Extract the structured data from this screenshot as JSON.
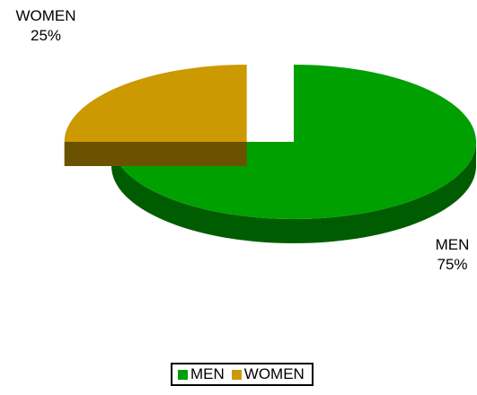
{
  "chart_data": {
    "type": "pie",
    "title": "",
    "categories": [
      "MEN",
      "WOMEN"
    ],
    "values": [
      75,
      25
    ],
    "value_labels": [
      "75%",
      "25%"
    ],
    "colors": [
      "#00A000",
      "#CC9900"
    ],
    "side_colors": [
      "#005C00",
      "#6B5200"
    ],
    "exploded": "WOMEN",
    "three_d": true,
    "legend": {
      "position": "bottom",
      "entries": [
        "MEN",
        "WOMEN"
      ]
    }
  }
}
